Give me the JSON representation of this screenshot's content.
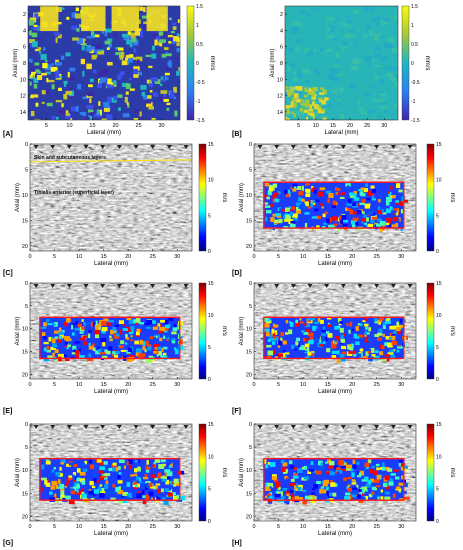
{
  "figure": {
    "panel_labels": [
      "[A]",
      "[B]",
      "[C]",
      "[D]",
      "[E]",
      "[F]",
      "[G]",
      "[H]"
    ],
    "annotations": {
      "skin_layer": "Skin and subcutaneous layers",
      "muscle_layer": "Tibialis anterior (superficial layer)"
    },
    "colors": {
      "roi_border": "#ff1a1a",
      "skin_line": "#ffe000",
      "jet_low": "#00007f",
      "jet_high": "#7f0000"
    }
  },
  "chart_data": [
    {
      "panel": "top-left",
      "type": "heatmap",
      "xlabel": "Lateral (mm)",
      "ylabel": "Axial (mm)",
      "x_ticks": [
        5,
        10,
        15,
        20,
        25,
        30
      ],
      "y_ticks": [
        2,
        4,
        6,
        8,
        10,
        12,
        14
      ],
      "xlim": [
        1,
        34
      ],
      "ylim": [
        1,
        15
      ],
      "colorbar": {
        "label": "mm/s",
        "ticks": [
          "1.5",
          "1",
          "0.5",
          "0",
          "-0.5",
          "-1",
          "-1.5"
        ],
        "range": [
          -1.5,
          1.5
        ],
        "colormap": "parula"
      }
    },
    {
      "panel": "top-right",
      "type": "heatmap",
      "xlabel": "Lateral (mm)",
      "ylabel": "Axial (mm)",
      "x_ticks": [
        5,
        10,
        15,
        20,
        25,
        30
      ],
      "y_ticks": [
        2,
        4,
        6,
        8,
        10,
        12,
        14
      ],
      "xlim": [
        1,
        34
      ],
      "ylim": [
        1,
        15
      ],
      "colorbar": {
        "label": "mm/s",
        "ticks": [
          "1.5",
          "1",
          "0.5",
          "0",
          "-0.5",
          "-1",
          "-1.5"
        ],
        "range": [
          -1.5,
          1.5
        ],
        "colormap": "parula"
      }
    },
    {
      "panel": "A",
      "type": "heatmap",
      "xlabel": "Lateral (mm)",
      "ylabel": "Axial (mm)",
      "x_ticks": [
        0,
        5,
        10,
        15,
        20,
        25,
        30
      ],
      "y_ticks": [
        0,
        5,
        10,
        15,
        20
      ],
      "xlim": [
        0,
        33
      ],
      "ylim": [
        0,
        21
      ],
      "roi": null,
      "colorbar": {
        "label": "m/s",
        "ticks": [
          "15",
          "10",
          "5",
          "0"
        ],
        "range": [
          0,
          15
        ],
        "colormap": "jet"
      }
    },
    {
      "panel": "B",
      "type": "heatmap",
      "xlabel": "Lateral (mm)",
      "ylabel": "Axial (mm)",
      "x_ticks": [
        0,
        5,
        10,
        15,
        20,
        25,
        30
      ],
      "y_ticks": [
        0,
        5,
        10,
        15,
        20
      ],
      "xlim": [
        0,
        33
      ],
      "ylim": [
        0,
        21
      ],
      "roi": {
        "x": [
          2,
          30.5
        ],
        "y": [
          7.5,
          16.5
        ]
      },
      "colorbar": {
        "label": "m/s",
        "ticks": [
          "15",
          "10",
          "5",
          "0"
        ],
        "range": [
          0,
          15
        ],
        "colormap": "jet"
      }
    },
    {
      "panel": "C",
      "type": "heatmap",
      "xlabel": "Lateral (mm)",
      "ylabel": "Axial (mm)",
      "x_ticks": [
        0,
        5,
        10,
        15,
        20,
        25,
        30
      ],
      "y_ticks": [
        0,
        5,
        10,
        15,
        20
      ],
      "xlim": [
        0,
        33
      ],
      "ylim": [
        0,
        21
      ],
      "roi": {
        "x": [
          2,
          30.5
        ],
        "y": [
          7.5,
          16.5
        ]
      },
      "colorbar": {
        "label": "m/s",
        "ticks": [
          "15",
          "10",
          "5",
          "0"
        ],
        "range": [
          0,
          15
        ],
        "colormap": "jet"
      }
    },
    {
      "panel": "D",
      "type": "heatmap",
      "xlabel": "Lateral (mm)",
      "ylabel": "Axial (mm)",
      "x_ticks": [
        0,
        5,
        10,
        15,
        20,
        25,
        30
      ],
      "y_ticks": [
        0,
        5,
        10,
        15,
        20
      ],
      "xlim": [
        0,
        33
      ],
      "ylim": [
        0,
        21
      ],
      "roi": {
        "x": [
          2,
          30.5
        ],
        "y": [
          7.5,
          16.5
        ]
      },
      "colorbar": {
        "label": "m/s",
        "ticks": [
          "15",
          "10",
          "5",
          "0"
        ],
        "range": [
          0,
          15
        ],
        "colormap": "jet"
      }
    },
    {
      "panel": "E",
      "type": "heatmap",
      "xlabel": "Lateral (mm)",
      "ylabel": "Axial (mm)",
      "x_ticks": [
        0,
        5,
        10,
        15,
        20,
        25,
        30
      ],
      "y_ticks": [
        0,
        5,
        10,
        15,
        20
      ],
      "xlim": [
        0,
        33
      ],
      "ylim": [
        0,
        21
      ],
      "roi": {
        "x": [
          2,
          30.5
        ],
        "y": [
          7.5,
          16.5
        ]
      },
      "colorbar": {
        "label": "m/s",
        "ticks": [
          "15",
          "10",
          "5",
          "0"
        ],
        "range": [
          0,
          15
        ],
        "colormap": "jet"
      }
    },
    {
      "panel": "F",
      "type": "heatmap",
      "xlabel": "Lateral (mm)",
      "ylabel": "Axial (mm)",
      "x_ticks": [
        0,
        5,
        10,
        15,
        20,
        25,
        30
      ],
      "y_ticks": [
        0,
        5,
        10,
        15,
        20
      ],
      "xlim": [
        0,
        33
      ],
      "ylim": [
        0,
        21
      ],
      "roi": {
        "x": [
          2,
          30.5
        ],
        "y": [
          7.5,
          16.5
        ]
      },
      "colorbar": {
        "label": "m/s",
        "ticks": [
          "15",
          "10",
          "5",
          "0"
        ],
        "range": [
          0,
          15
        ],
        "colormap": "jet"
      }
    },
    {
      "panel": "G",
      "type": "heatmap",
      "xlabel": "Lateral (mm)",
      "ylabel": "Axial (mm)",
      "x_ticks": [
        0,
        5,
        10,
        15,
        20,
        25,
        30
      ],
      "y_ticks": [
        0,
        5,
        10,
        15,
        20
      ],
      "xlim": [
        0,
        33
      ],
      "ylim": [
        0,
        21
      ],
      "roi": {
        "x": [
          2,
          30.5
        ],
        "y": [
          7.5,
          16.5
        ]
      },
      "colorbar": {
        "label": "m/s",
        "ticks": [
          "15",
          "10",
          "5",
          "0"
        ],
        "range": [
          0,
          15
        ],
        "colormap": "jet"
      }
    }
  ]
}
